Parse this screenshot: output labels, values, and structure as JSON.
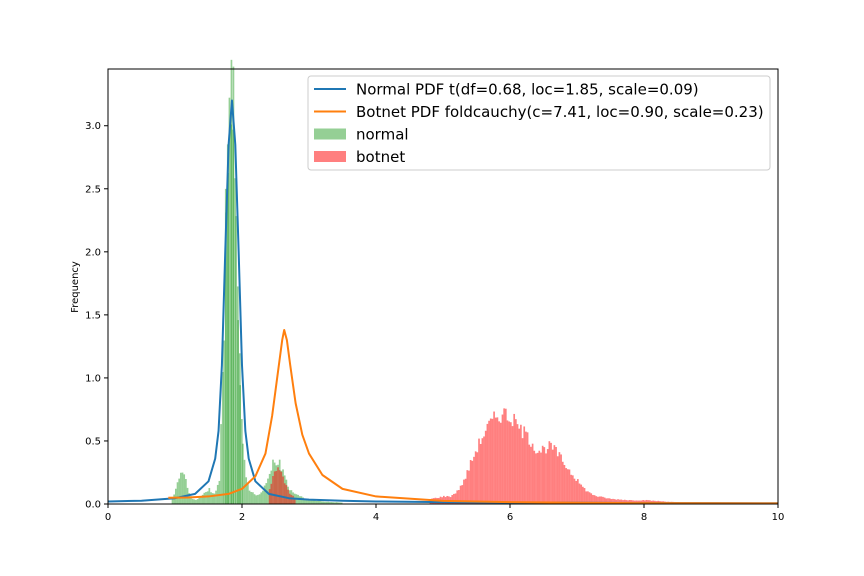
{
  "chart_data": {
    "type": "histogram",
    "title": "",
    "xlabel": "",
    "ylabel": "Frequency",
    "xlim": [
      0,
      10
    ],
    "ylim": [
      0,
      3.45
    ],
    "xticks": [
      "0",
      "2",
      "4",
      "6",
      "8",
      "10"
    ],
    "yticks": [
      "0.0",
      "0.5",
      "1.0",
      "1.5",
      "2.0",
      "2.5",
      "3.0"
    ],
    "grid": false,
    "legend_position": "top-right",
    "colors": {
      "normal_pdf": "#1f77b4",
      "botnet_pdf": "#ff7f0e",
      "normal_hist": "#2ca02c",
      "botnet_hist": "#ff0000"
    },
    "legend": [
      {
        "label": "Normal PDF t(df=0.68, loc=1.85, scale=0.09)",
        "kind": "line",
        "color": "#1f77b4"
      },
      {
        "label": "Botnet PDF foldcauchy(c=7.41, loc=0.90, scale=0.23)",
        "kind": "line",
        "color": "#ff7f0e"
      },
      {
        "label": "normal",
        "kind": "patch",
        "color": "#2ca02c"
      },
      {
        "label": "botnet",
        "kind": "patch",
        "color": "#ff0000"
      }
    ],
    "series": [
      {
        "name": "normal",
        "kind": "histogram",
        "color": "#2ca02c",
        "opacity": 0.5,
        "points": [
          [
            0.95,
            0.04
          ],
          [
            1.0,
            0.12
          ],
          [
            1.05,
            0.2
          ],
          [
            1.1,
            0.26
          ],
          [
            1.15,
            0.2
          ],
          [
            1.2,
            0.08
          ],
          [
            1.25,
            0.04
          ],
          [
            1.3,
            0.03
          ],
          [
            1.35,
            0.05
          ],
          [
            1.4,
            0.07
          ],
          [
            1.45,
            0.1
          ],
          [
            1.5,
            0.12
          ],
          [
            1.55,
            0.08
          ],
          [
            1.6,
            0.1
          ],
          [
            1.65,
            0.2
          ],
          [
            1.7,
            1.05
          ],
          [
            1.72,
            1.4
          ],
          [
            1.75,
            2.5
          ],
          [
            1.78,
            2.8
          ],
          [
            1.8,
            3.0
          ],
          [
            1.83,
            3.28
          ],
          [
            1.86,
            3.18
          ],
          [
            1.9,
            2.35
          ],
          [
            1.93,
            1.6
          ],
          [
            1.96,
            1.0
          ],
          [
            2.0,
            0.5
          ],
          [
            2.05,
            0.2
          ],
          [
            2.1,
            0.1
          ],
          [
            2.2,
            0.07
          ],
          [
            2.3,
            0.1
          ],
          [
            2.4,
            0.25
          ],
          [
            2.45,
            0.32
          ],
          [
            2.5,
            0.3
          ],
          [
            2.55,
            0.33
          ],
          [
            2.6,
            0.25
          ],
          [
            2.65,
            0.18
          ],
          [
            2.7,
            0.12
          ],
          [
            2.8,
            0.08
          ],
          [
            2.9,
            0.05
          ],
          [
            3.0,
            0.03
          ],
          [
            3.2,
            0.02
          ],
          [
            3.5,
            0.01
          ]
        ]
      },
      {
        "name": "botnet",
        "kind": "histogram",
        "color": "#ff0000",
        "opacity": 0.5,
        "points": [
          [
            2.4,
            0.12
          ],
          [
            2.45,
            0.22
          ],
          [
            2.5,
            0.26
          ],
          [
            2.55,
            0.28
          ],
          [
            2.6,
            0.22
          ],
          [
            2.65,
            0.14
          ],
          [
            2.7,
            0.08
          ],
          [
            2.8,
            0.04
          ],
          [
            4.8,
            0.04
          ],
          [
            4.9,
            0.05
          ],
          [
            5.0,
            0.06
          ],
          [
            5.1,
            0.06
          ],
          [
            5.2,
            0.1
          ],
          [
            5.3,
            0.18
          ],
          [
            5.4,
            0.32
          ],
          [
            5.5,
            0.45
          ],
          [
            5.6,
            0.56
          ],
          [
            5.7,
            0.64
          ],
          [
            5.8,
            0.7
          ],
          [
            5.9,
            0.72
          ],
          [
            6.0,
            0.68
          ],
          [
            6.1,
            0.62
          ],
          [
            6.2,
            0.56
          ],
          [
            6.3,
            0.5
          ],
          [
            6.4,
            0.42
          ],
          [
            6.5,
            0.44
          ],
          [
            6.6,
            0.46
          ],
          [
            6.7,
            0.4
          ],
          [
            6.8,
            0.32
          ],
          [
            6.9,
            0.25
          ],
          [
            7.0,
            0.18
          ],
          [
            7.1,
            0.12
          ],
          [
            7.2,
            0.08
          ],
          [
            7.3,
            0.06
          ],
          [
            7.5,
            0.04
          ],
          [
            7.8,
            0.03
          ],
          [
            8.0,
            0.03
          ],
          [
            8.3,
            0.02
          ],
          [
            8.6,
            0.01
          ],
          [
            9.0,
            0.005
          ]
        ]
      },
      {
        "name": "Normal PDF t(df=0.68, loc=1.85, scale=0.09)",
        "kind": "line",
        "color": "#1f77b4",
        "points": [
          [
            0,
            0.02
          ],
          [
            0.5,
            0.026
          ],
          [
            1.0,
            0.046
          ],
          [
            1.3,
            0.08
          ],
          [
            1.5,
            0.18
          ],
          [
            1.6,
            0.36
          ],
          [
            1.65,
            0.58
          ],
          [
            1.7,
            1.1
          ],
          [
            1.75,
            2.0
          ],
          [
            1.8,
            2.85
          ],
          [
            1.85,
            3.2
          ],
          [
            1.9,
            2.85
          ],
          [
            1.95,
            2.0
          ],
          [
            2.0,
            1.1
          ],
          [
            2.05,
            0.58
          ],
          [
            2.1,
            0.36
          ],
          [
            2.2,
            0.18
          ],
          [
            2.4,
            0.08
          ],
          [
            2.7,
            0.046
          ],
          [
            3.0,
            0.035
          ],
          [
            3.5,
            0.026
          ],
          [
            4,
            0.02
          ],
          [
            5,
            0.015
          ],
          [
            6,
            0.012
          ],
          [
            7,
            0.01
          ],
          [
            8,
            0.008
          ],
          [
            9,
            0.007
          ],
          [
            10,
            0.006
          ]
        ]
      },
      {
        "name": "Botnet PDF foldcauchy(c=7.41, loc=0.90, scale=0.23)",
        "kind": "line",
        "color": "#ff7f0e",
        "points": [
          [
            0.9,
            0.05
          ],
          [
            1.2,
            0.052
          ],
          [
            1.5,
            0.06
          ],
          [
            1.8,
            0.08
          ],
          [
            2.0,
            0.12
          ],
          [
            2.2,
            0.22
          ],
          [
            2.35,
            0.4
          ],
          [
            2.45,
            0.7
          ],
          [
            2.55,
            1.1
          ],
          [
            2.6,
            1.3
          ],
          [
            2.63,
            1.38
          ],
          [
            2.67,
            1.3
          ],
          [
            2.72,
            1.1
          ],
          [
            2.8,
            0.8
          ],
          [
            2.9,
            0.55
          ],
          [
            3.0,
            0.4
          ],
          [
            3.2,
            0.23
          ],
          [
            3.5,
            0.12
          ],
          [
            4.0,
            0.06
          ],
          [
            5.0,
            0.025
          ],
          [
            6.0,
            0.015
          ],
          [
            7.0,
            0.01
          ],
          [
            8.0,
            0.007
          ],
          [
            9.0,
            0.006
          ],
          [
            10,
            0.005
          ]
        ]
      }
    ]
  }
}
